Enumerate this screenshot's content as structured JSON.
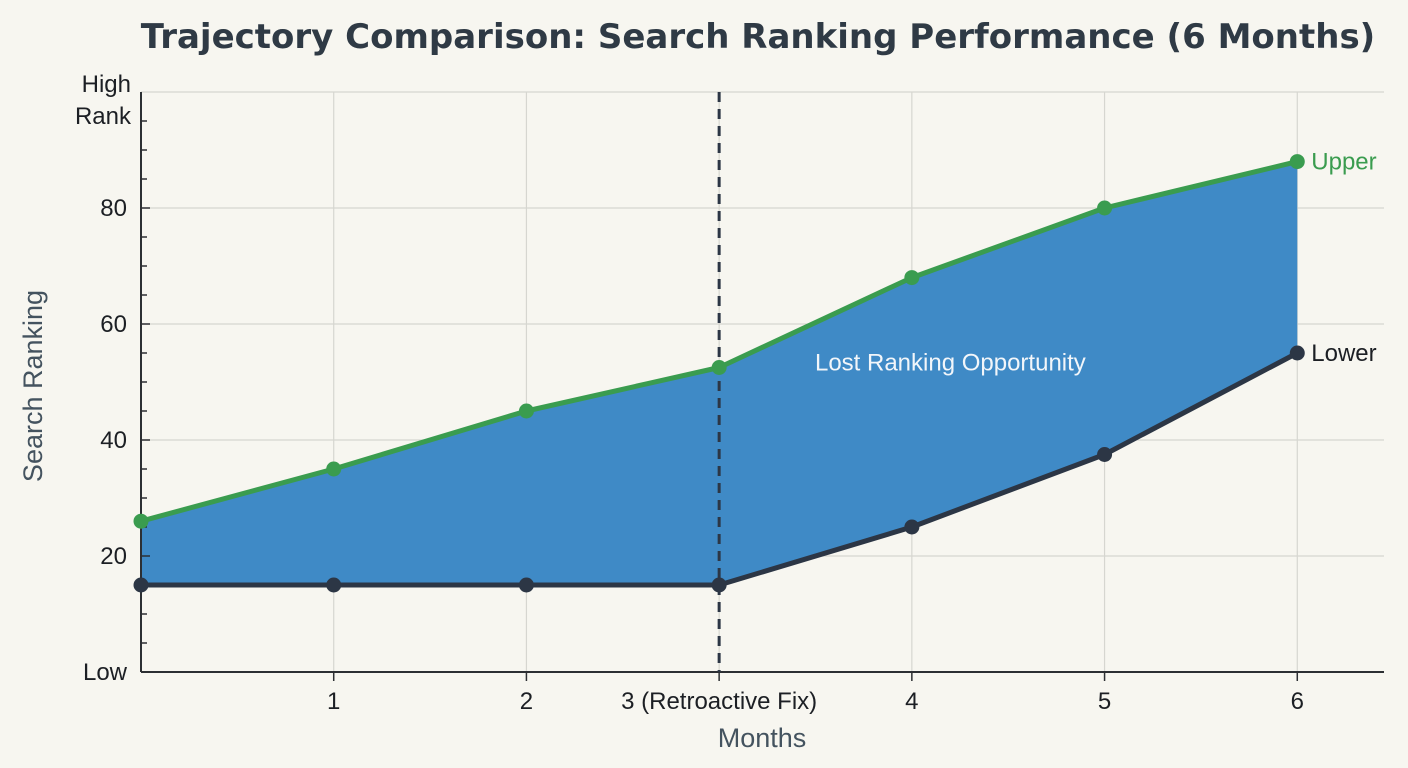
{
  "chart_data": {
    "type": "area",
    "title": "Trajectory Comparison: Search Ranking Performance (6 Months)",
    "xlabel": "Months",
    "ylabel": "Search Ranking",
    "x": [
      0,
      1,
      2,
      3,
      4,
      5,
      6
    ],
    "x_tick_labels": [
      "1",
      "2",
      "3 (Retroactive Fix)",
      "4",
      "5",
      "6"
    ],
    "x_tick_values": [
      1,
      2,
      3,
      4,
      5,
      6
    ],
    "xlim": [
      0,
      6.45
    ],
    "ylim": [
      0,
      100
    ],
    "y_tick_values": [
      20,
      40,
      60,
      80
    ],
    "y_tick_labels": [
      "20",
      "40",
      "60",
      "80"
    ],
    "y_top_label": [
      "High",
      "Rank"
    ],
    "y_bottom_label": "Low",
    "grid": true,
    "series": [
      {
        "name": "Upper",
        "color": "#3a9c4f",
        "values": [
          26,
          35,
          45,
          52.5,
          68,
          80,
          88
        ]
      },
      {
        "name": "Lower",
        "color": "#2c3645",
        "values": [
          15,
          15,
          15,
          15,
          25,
          37.5,
          55
        ]
      }
    ],
    "fill_color": "#3f8ac6",
    "annotations": {
      "vline_x": 3,
      "area_label": "Lost Ranking Opportunity",
      "area_label_x": 4.2,
      "area_label_y": 52
    }
  }
}
